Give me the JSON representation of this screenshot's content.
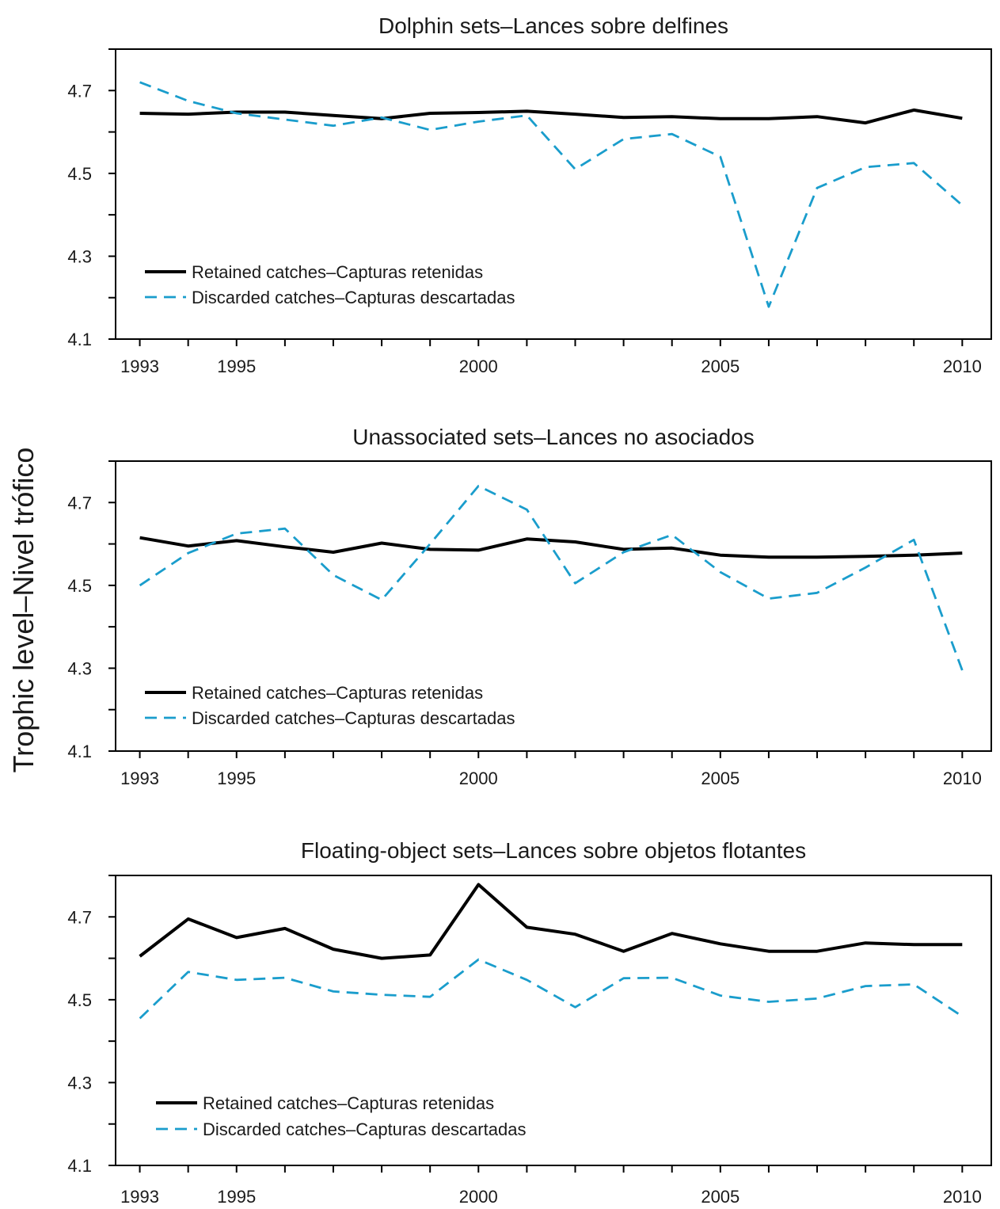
{
  "figure": {
    "ylabel": "Trophic level–Nivel trófico",
    "colors": {
      "retained": "#000000",
      "discarded": "#1a9dcc"
    }
  },
  "chart_data": [
    {
      "type": "line",
      "title": "Dolphin sets–Lances sobre delfines",
      "x": [
        1993,
        1994,
        1995,
        1996,
        1997,
        1998,
        1999,
        2000,
        2001,
        2002,
        2003,
        2004,
        2005,
        2006,
        2007,
        2008,
        2009,
        2010
      ],
      "xticks": [
        1993,
        1995,
        2000,
        2005,
        2010
      ],
      "yticks": [
        4.1,
        4.3,
        4.5,
        4.7
      ],
      "ylim": [
        4.1,
        4.8
      ],
      "xlim": [
        1992.5,
        2010.6
      ],
      "legend": "bottom-left",
      "series": [
        {
          "name": "Retained catches–Capturas retenidas",
          "style": "solid",
          "color": "#000000",
          "values": [
            4.645,
            4.643,
            4.648,
            4.648,
            4.64,
            4.632,
            4.645,
            4.647,
            4.65,
            4.643,
            4.635,
            4.637,
            4.632,
            4.632,
            4.637,
            4.622,
            4.653,
            4.633
          ]
        },
        {
          "name": "Discarded catches–Capturas descartadas",
          "style": "dashed",
          "color": "#1a9dcc",
          "values": [
            4.72,
            4.675,
            4.645,
            4.63,
            4.615,
            4.635,
            4.605,
            4.625,
            4.64,
            4.51,
            4.583,
            4.595,
            4.54,
            4.178,
            4.465,
            4.515,
            4.525,
            4.423
          ]
        }
      ]
    },
    {
      "type": "line",
      "title": "Unassociated sets–Lances no asociados",
      "x": [
        1993,
        1994,
        1995,
        1996,
        1997,
        1998,
        1999,
        2000,
        2001,
        2002,
        2003,
        2004,
        2005,
        2006,
        2007,
        2008,
        2009,
        2010
      ],
      "xticks": [
        1993,
        1995,
        2000,
        2005,
        2010
      ],
      "yticks": [
        4.1,
        4.3,
        4.5,
        4.7
      ],
      "ylim": [
        4.1,
        4.8
      ],
      "xlim": [
        1992.5,
        2010.6
      ],
      "legend": "bottom-left",
      "series": [
        {
          "name": "Retained catches–Capturas retenidas",
          "style": "solid",
          "color": "#000000",
          "values": [
            4.615,
            4.595,
            4.608,
            4.593,
            4.58,
            4.602,
            4.587,
            4.585,
            4.612,
            4.605,
            4.587,
            4.59,
            4.573,
            4.568,
            4.568,
            4.57,
            4.573,
            4.578
          ]
        },
        {
          "name": "Discarded catches–Capturas descartadas",
          "style": "dashed",
          "color": "#1a9dcc",
          "values": [
            4.5,
            4.578,
            4.625,
            4.637,
            4.525,
            4.465,
            4.6,
            4.74,
            4.683,
            4.505,
            4.58,
            4.622,
            4.532,
            4.468,
            4.482,
            4.543,
            4.61,
            4.295
          ]
        }
      ]
    },
    {
      "type": "line",
      "title": "Floating-object sets–Lances sobre objetos flotantes",
      "x": [
        1993,
        1994,
        1995,
        1996,
        1997,
        1998,
        1999,
        2000,
        2001,
        2002,
        2003,
        2004,
        2005,
        2006,
        2007,
        2008,
        2009,
        2010
      ],
      "xticks": [
        1993,
        1995,
        2000,
        2005,
        2010
      ],
      "yticks": [
        4.1,
        4.3,
        4.5,
        4.7
      ],
      "ylim": [
        4.1,
        4.8
      ],
      "xlim": [
        1992.5,
        2010.6
      ],
      "legend": "bottom-left",
      "series": [
        {
          "name": "Retained catches–Capturas retenidas",
          "style": "solid",
          "color": "#000000",
          "values": [
            4.605,
            4.695,
            4.65,
            4.672,
            4.622,
            4.6,
            4.608,
            4.778,
            4.675,
            4.658,
            4.617,
            4.66,
            4.635,
            4.617,
            4.617,
            4.637,
            4.633,
            4.633
          ]
        },
        {
          "name": "Discarded catches–Capturas descartadas",
          "style": "dashed",
          "color": "#1a9dcc",
          "values": [
            4.455,
            4.567,
            4.548,
            4.553,
            4.52,
            4.512,
            4.507,
            4.597,
            4.548,
            4.482,
            4.552,
            4.553,
            4.51,
            4.495,
            4.503,
            4.533,
            4.537,
            4.46
          ]
        }
      ]
    }
  ]
}
